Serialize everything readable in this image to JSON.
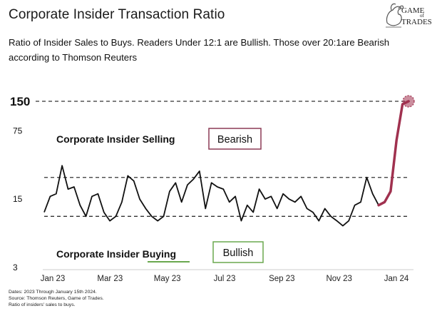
{
  "header": {
    "title": "Corporate Insider Transaction Ratio",
    "subtitle_line1": "Ratio of Insider Sales to Buys. Readers Under 12:1 are Bullish. Those over 20:1are Bearish",
    "subtitle_line2": "according to Thomson Reuters"
  },
  "logo": {
    "line1": "GAME",
    "line2": "of",
    "line3": "TRADES"
  },
  "footer": {
    "dates": "Dates: 2023 Through January 15th 2024.",
    "source": "Source: Thomson Reuters, Game of Trades.",
    "note": "Ratio of insiders' sales to buys."
  },
  "colors": {
    "line": "#111111",
    "highlight": "#a0314f",
    "bearish_box": "#8c3a55",
    "bullish_box": "#6aa84f",
    "reference_line": "#333333"
  },
  "chart_data": {
    "type": "line",
    "y_scale": "log",
    "ylim": [
      3,
      170
    ],
    "y_ticks": [
      3,
      15,
      75,
      150
    ],
    "y_tick_labels": [
      "3",
      "15",
      "75",
      "150"
    ],
    "x_ticks": [
      "Jan 23",
      "Mar 23",
      "May 23",
      "Jul 23",
      "Sep 23",
      "Nov 23",
      "Jan 24"
    ],
    "reference_lines": [
      150,
      25,
      10
    ],
    "annotations": {
      "selling_label": "Corporate Insider Selling",
      "bearish_label": "Bearish",
      "buying_label_prefix": "Corporate Insider ",
      "buying_label_word": "Buying",
      "bullish_label": "Bullish"
    },
    "series": [
      {
        "values": [
          11,
          16,
          17,
          33,
          19,
          20,
          13,
          10,
          16,
          17,
          11,
          9,
          10,
          14,
          26,
          23,
          15,
          12,
          10,
          9,
          10,
          18,
          22,
          14,
          21,
          24,
          29,
          12,
          22,
          20,
          19,
          14,
          16,
          9,
          13,
          11,
          19,
          15,
          16,
          12,
          17,
          15,
          14,
          16,
          12,
          11,
          9,
          12,
          10,
          9,
          8,
          9,
          13,
          14,
          25,
          17,
          13
        ]
      },
      {
        "highlight": true,
        "values": [
          13,
          14,
          18,
          60,
          140,
          150
        ]
      }
    ]
  }
}
